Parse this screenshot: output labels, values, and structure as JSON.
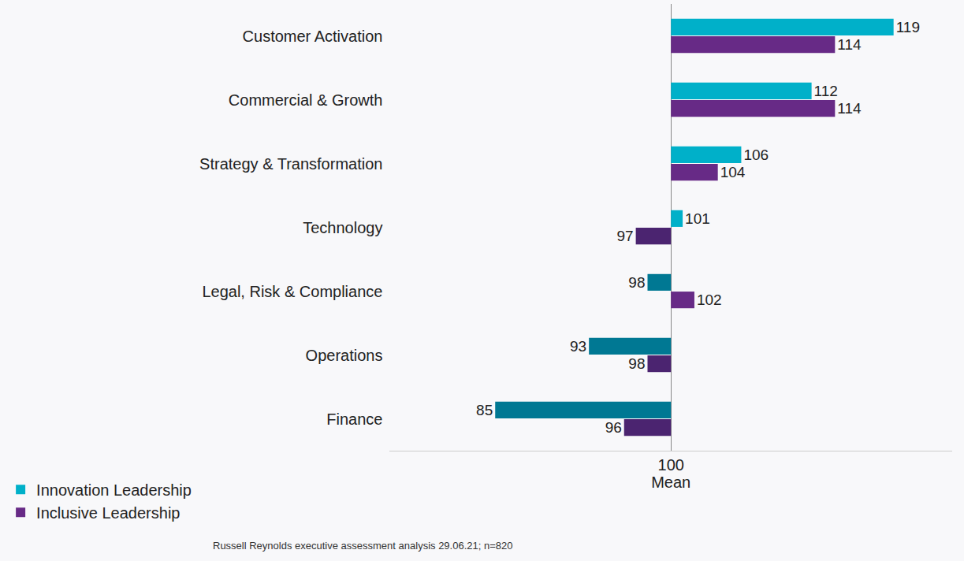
{
  "chart_data": {
    "type": "bar",
    "orientation": "horizontal",
    "categories": [
      "Customer Activation",
      "Commercial & Growth",
      "Strategy & Transformation",
      "Technology",
      "Legal, Risk & Compliance",
      "Operations",
      "Finance"
    ],
    "series": [
      {
        "name": "Innovation Leadership",
        "values": [
          119,
          112,
          106,
          101,
          98,
          93,
          85
        ],
        "colors": [
          "#00b0c9",
          "#00b0c9",
          "#00b0c9",
          "#00b0c9",
          "#007893",
          "#007893",
          "#007893"
        ]
      },
      {
        "name": "Inclusive Leadership",
        "values": [
          114,
          114,
          104,
          97,
          102,
          98,
          96
        ],
        "colors": [
          "#672a86",
          "#672a86",
          "#672a86",
          "#4b2470",
          "#672a86",
          "#4b2470",
          "#4b2470"
        ]
      }
    ],
    "x_label": "Mean",
    "xlim": [
      76,
      124
    ],
    "xticks": [
      100
    ],
    "grid": true,
    "data_labels": true,
    "legend": "bottom left",
    "source": "Russell Reynolds executive assessment analysis 29.06.21; n=820"
  }
}
